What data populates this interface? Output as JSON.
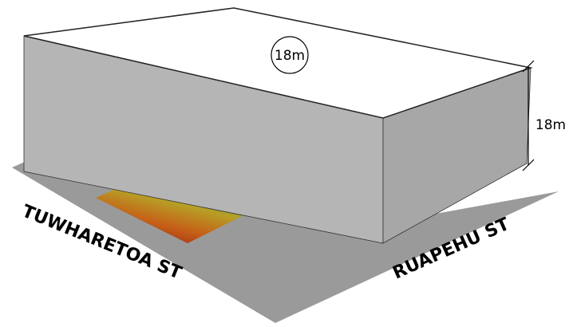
{
  "labels": {
    "height_circle": "18m",
    "height_dimension": "18m",
    "street_left": "TUWHARETOA ST",
    "street_right": "RUAPEHU ST"
  }
}
